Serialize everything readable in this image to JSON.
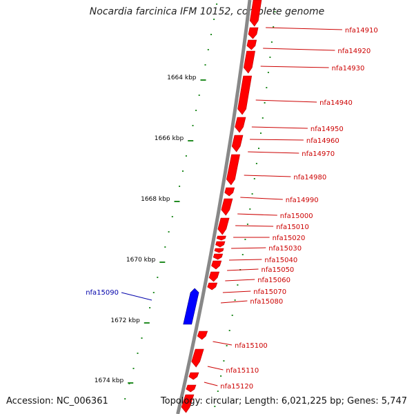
{
  "map": {
    "title": "Nocardia farcinica IFM 10152, complete genome",
    "accession_label": "Accession: NC_006361",
    "summary_label": "Topology: circular; Length: 6,021,225 bp; Genes: 5,747",
    "colors": {
      "backbone": "#888888",
      "forward_gene": "#ff0000",
      "reverse_gene": "#0000ff",
      "tick": "#228b22",
      "label_forward": "#cc0000",
      "label_reverse": "#0000aa",
      "scale_text": "#000000"
    },
    "scale_ticks": [
      "1664 kbp",
      "1666 kbp",
      "1668 kbp",
      "1670 kbp",
      "1672 kbp",
      "1674 kbp"
    ],
    "gene_labels_forward": [
      "nfa14910",
      "nfa14920",
      "nfa14930",
      "nfa14940",
      "nfa14950",
      "nfa14960",
      "nfa14970",
      "nfa14980",
      "nfa14990",
      "nfa15000",
      "nfa15010",
      "nfa15020",
      "nfa15030",
      "nfa15040",
      "nfa15050",
      "nfa15060",
      "nfa15070",
      "nfa15080",
      "nfa15100",
      "nfa15110",
      "nfa15120"
    ],
    "gene_labels_reverse": [
      "nfa15090"
    ]
  }
}
